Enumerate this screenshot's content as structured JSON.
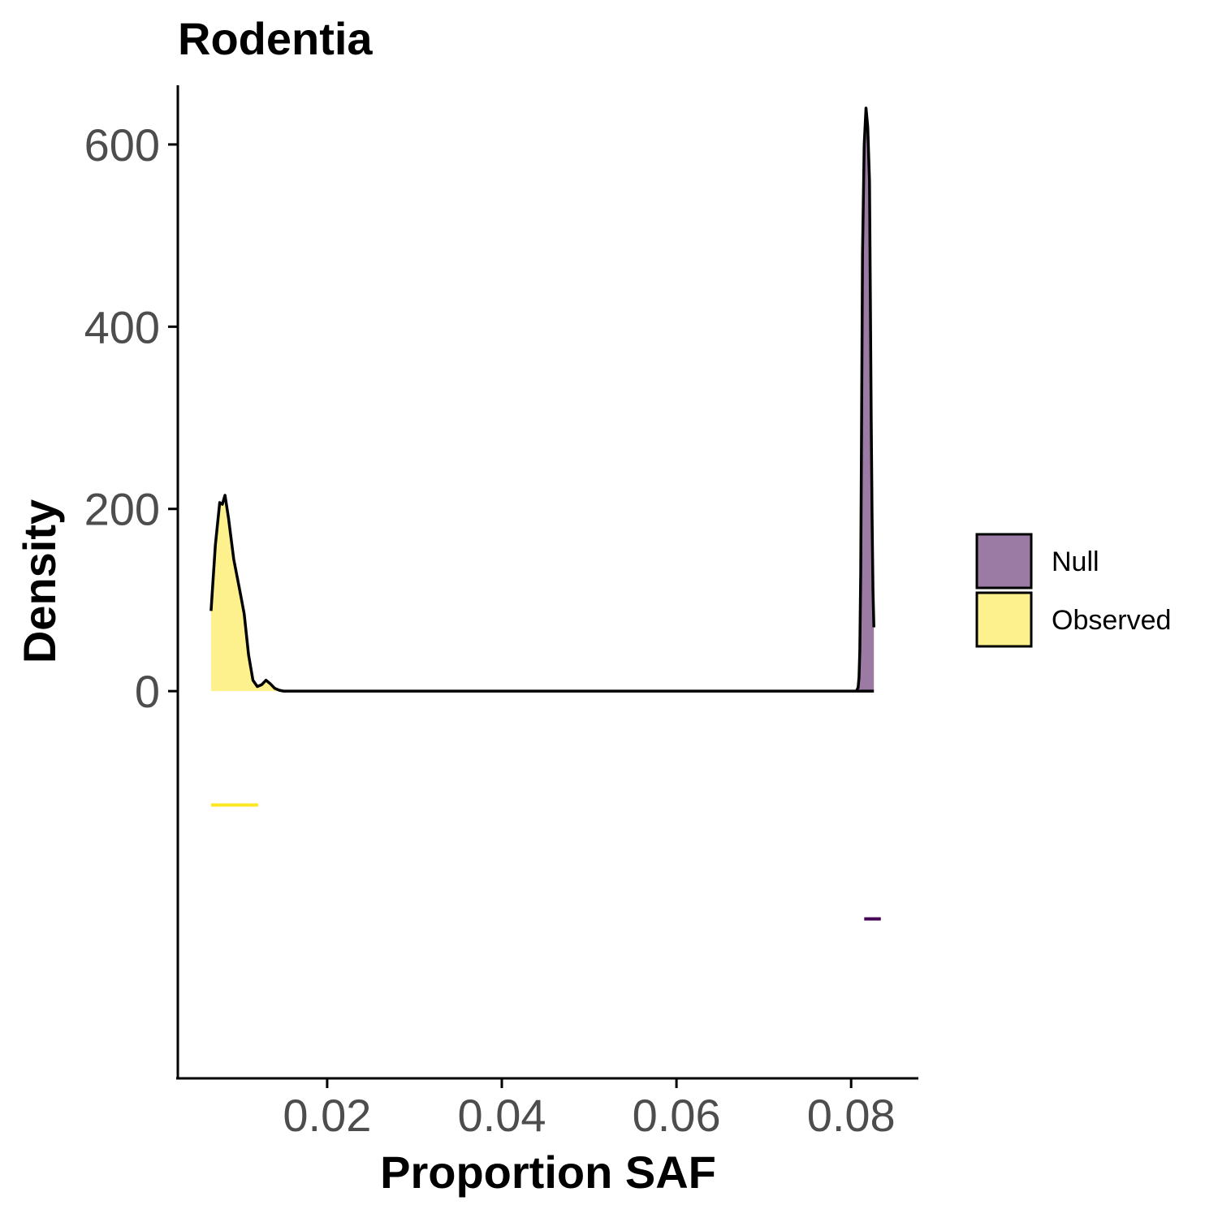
{
  "chart_data": {
    "type": "area",
    "title": "Rodentia",
    "xlabel": "Proportion SAF",
    "ylabel": "Density",
    "xlim": [
      0.0029,
      0.0877
    ],
    "ylim": [
      -425,
      665
    ],
    "x_ticks": [
      0.02,
      0.04,
      0.06,
      0.08
    ],
    "x_tick_labels": [
      "0.02",
      "0.04",
      "0.06",
      "0.08"
    ],
    "y_ticks": [
      0,
      200,
      400,
      600
    ],
    "y_tick_labels": [
      "0",
      "200",
      "400",
      "600"
    ],
    "grid": false,
    "legend_position": "right",
    "series": [
      {
        "name": "Null",
        "fill": "#9b7aa3",
        "interval_color": "#440154",
        "interval": {
          "x_start": 0.0815,
          "x_end": 0.0834,
          "y": -250
        },
        "points": [
          [
            0.0806,
            0
          ],
          [
            0.0808,
            4
          ],
          [
            0.0809,
            15
          ],
          [
            0.081,
            45
          ],
          [
            0.0811,
            130
          ],
          [
            0.0812,
            300
          ],
          [
            0.0813,
            480
          ],
          [
            0.0815,
            600
          ],
          [
            0.0817,
            640
          ],
          [
            0.0819,
            620
          ],
          [
            0.0821,
            560
          ],
          [
            0.0822,
            440
          ],
          [
            0.0823,
            300
          ],
          [
            0.0824,
            190
          ],
          [
            0.0825,
            110
          ],
          [
            0.0826,
            70
          ]
        ]
      },
      {
        "name": "Observed",
        "fill": "#fdf18e",
        "interval_color": "#fde725",
        "interval": {
          "x_start": 0.0067,
          "x_end": 0.0121,
          "y": -125
        },
        "points": [
          [
            0.0067,
            88
          ],
          [
            0.0072,
            160
          ],
          [
            0.0077,
            207
          ],
          [
            0.008,
            205
          ],
          [
            0.0083,
            215
          ],
          [
            0.0087,
            190
          ],
          [
            0.0093,
            145
          ],
          [
            0.01,
            110
          ],
          [
            0.0105,
            85
          ],
          [
            0.011,
            40
          ],
          [
            0.0115,
            12
          ],
          [
            0.012,
            5
          ],
          [
            0.0125,
            7
          ],
          [
            0.013,
            12
          ],
          [
            0.0135,
            8
          ],
          [
            0.014,
            3
          ],
          [
            0.0145,
            1
          ],
          [
            0.015,
            0
          ],
          [
            0.0826,
            0
          ]
        ]
      }
    ]
  }
}
